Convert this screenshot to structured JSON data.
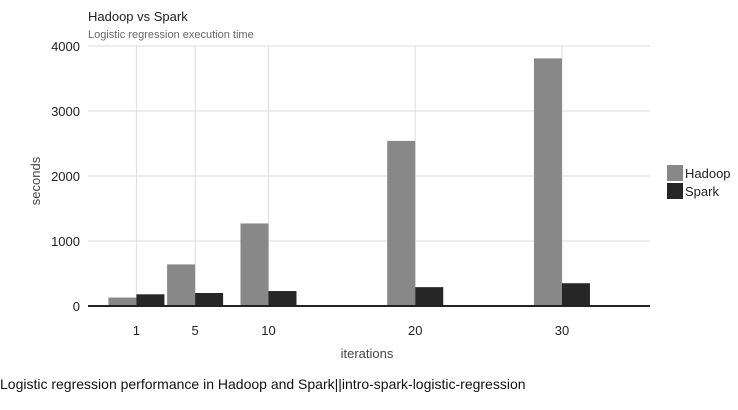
{
  "caption": "Logistic regression performance in Hadoop and Spark||intro-spark-logistic-regression",
  "chart_data": {
    "type": "bar",
    "title": "Hadoop vs Spark",
    "subtitle": "Logistic regression execution time",
    "xlabel": "iterations",
    "ylabel": "seconds",
    "x": [
      1,
      5,
      10,
      20,
      30
    ],
    "x_tick_labels": [
      "1",
      "5",
      "10",
      "20",
      "30"
    ],
    "xlim": [
      -2.3,
      36
    ],
    "ylim": [
      0,
      4000
    ],
    "y_ticks": [
      0,
      1000,
      2000,
      3000,
      4000
    ],
    "grid": true,
    "legend_position": "right",
    "series": [
      {
        "name": "Hadoop",
        "color": "#888888",
        "values": [
          130,
          640,
          1270,
          2540,
          3810
        ]
      },
      {
        "name": "Spark",
        "color": "#262626",
        "values": [
          180,
          200,
          230,
          290,
          350
        ]
      }
    ]
  }
}
